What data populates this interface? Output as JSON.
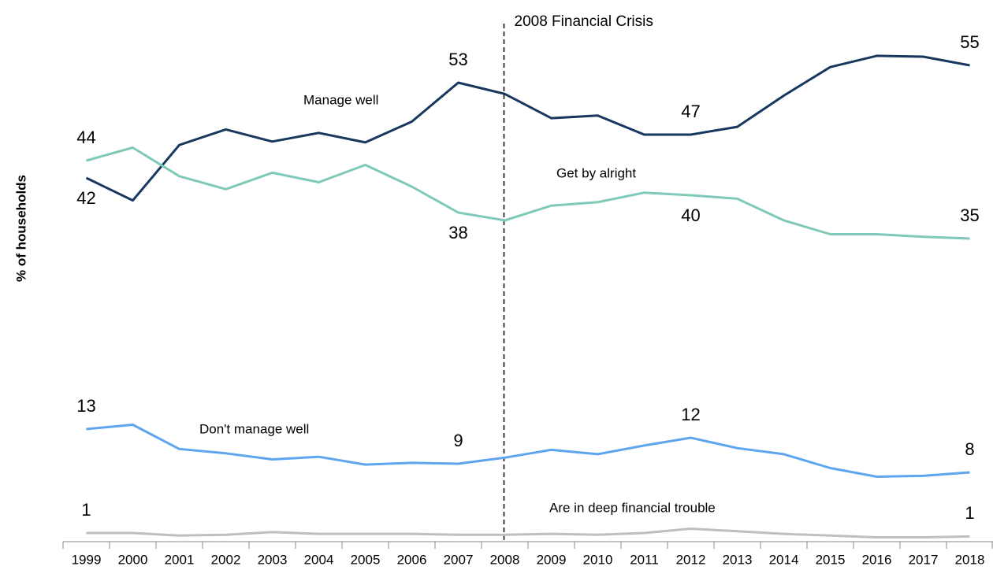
{
  "chart_data": {
    "type": "line",
    "ylabel": "% of households",
    "categories": [
      "1999",
      "2000",
      "2001",
      "2002",
      "2003",
      "2004",
      "2005",
      "2006",
      "2007",
      "2008",
      "2009",
      "2010",
      "2011",
      "2012",
      "2013",
      "2014",
      "2015",
      "2016",
      "2017",
      "2018"
    ],
    "ylim": [
      0,
      60
    ],
    "series": [
      {
        "name": "Manage well",
        "color": "#17375e",
        "values": [
          42,
          39.4,
          45.8,
          47.6,
          46.2,
          47.2,
          46.1,
          48.5,
          53,
          51.7,
          48.9,
          49.2,
          47,
          47,
          47.9,
          51.5,
          54.8,
          56.1,
          56,
          55
        ],
        "value_labels": [
          "42",
          null,
          null,
          null,
          null,
          null,
          null,
          null,
          "53",
          null,
          null,
          null,
          null,
          "47",
          null,
          null,
          null,
          null,
          null,
          "55"
        ]
      },
      {
        "name": "Get by alright",
        "color": "#7fc9b8",
        "values": [
          44,
          45.5,
          42.2,
          40.7,
          42.6,
          41.5,
          43.5,
          41,
          38,
          37.1,
          38.8,
          39.2,
          40.3,
          40,
          39.6,
          37.1,
          35.5,
          35.5,
          35.2,
          35
        ],
        "value_labels": [
          "44",
          null,
          null,
          null,
          null,
          null,
          null,
          null,
          "38",
          null,
          null,
          null,
          null,
          "40",
          null,
          null,
          null,
          null,
          null,
          "35"
        ]
      },
      {
        "name": "Don't manage well",
        "color": "#5ea5ef",
        "values": [
          13,
          13.5,
          10.7,
          10.2,
          9.5,
          9.8,
          8.9,
          9.1,
          9,
          9.7,
          10.6,
          10.1,
          11.1,
          12,
          10.8,
          10.1,
          8.5,
          7.5,
          7.6,
          8
        ],
        "value_labels": [
          "13",
          null,
          null,
          null,
          null,
          null,
          null,
          null,
          "9",
          null,
          null,
          null,
          null,
          "12",
          null,
          null,
          null,
          null,
          null,
          "8"
        ]
      },
      {
        "name": "Are in deep financial trouble",
        "color": "#bfbfbf",
        "values": [
          1,
          1,
          0.7,
          0.8,
          1.1,
          0.9,
          0.9,
          0.9,
          0.8,
          0.8,
          0.9,
          0.8,
          1,
          1.5,
          1.2,
          0.9,
          0.7,
          0.5,
          0.5,
          0.6
        ],
        "value_labels": [
          "1",
          null,
          null,
          null,
          null,
          null,
          null,
          null,
          null,
          null,
          null,
          null,
          null,
          null,
          null,
          null,
          null,
          null,
          null,
          "1"
        ]
      }
    ],
    "annotation": {
      "text": "2008 Financial Crisis",
      "x": "2008"
    }
  }
}
